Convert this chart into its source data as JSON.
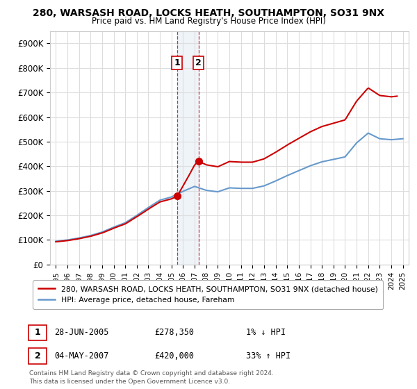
{
  "title": "280, WARSASH ROAD, LOCKS HEATH, SOUTHAMPTON, SO31 9NX",
  "subtitle": "Price paid vs. HM Land Registry's House Price Index (HPI)",
  "ylabel_ticks": [
    "£0",
    "£100K",
    "£200K",
    "£300K",
    "£400K",
    "£500K",
    "£600K",
    "£700K",
    "£800K",
    "£900K"
  ],
  "ytick_values": [
    0,
    100000,
    200000,
    300000,
    400000,
    500000,
    600000,
    700000,
    800000,
    900000
  ],
  "ylim": [
    0,
    950000
  ],
  "xlim_start": 1994.5,
  "xlim_end": 2025.5,
  "hpi_color": "#6699cc",
  "price_color": "#cc0000",
  "transaction1_date": 2005.49,
  "transaction1_price": 278350,
  "transaction2_date": 2007.34,
  "transaction2_price": 420000,
  "legend_label1": "280, WARSASH ROAD, LOCKS HEATH, SOUTHAMPTON, SO31 9NX (detached house)",
  "legend_label2": "HPI: Average price, detached house, Fareham",
  "table_row1": [
    "1",
    "28-JUN-2005",
    "£278,350",
    "1% ↓ HPI"
  ],
  "table_row2": [
    "2",
    "04-MAY-2007",
    "£420,000",
    "33% ↑ HPI"
  ],
  "footer": "Contains HM Land Registry data © Crown copyright and database right 2024.\nThis data is licensed under the Open Government Licence v3.0.",
  "background_color": "#ffffff",
  "grid_color": "#dddddd",
  "years_hpi": [
    1995,
    1996,
    1997,
    1998,
    1999,
    2000,
    2001,
    2002,
    2003,
    2004,
    2005,
    2006,
    2007,
    2008,
    2009,
    2010,
    2011,
    2012,
    2013,
    2014,
    2015,
    2016,
    2017,
    2018,
    2019,
    2020,
    2021,
    2022,
    2023,
    2024,
    2025
  ],
  "hpi_values": [
    95000,
    100000,
    108000,
    118000,
    132000,
    152000,
    170000,
    200000,
    232000,
    262000,
    275000,
    298000,
    318000,
    302000,
    296000,
    312000,
    310000,
    310000,
    320000,
    340000,
    362000,
    382000,
    402000,
    418000,
    428000,
    438000,
    495000,
    535000,
    512000,
    508000,
    512000
  ]
}
